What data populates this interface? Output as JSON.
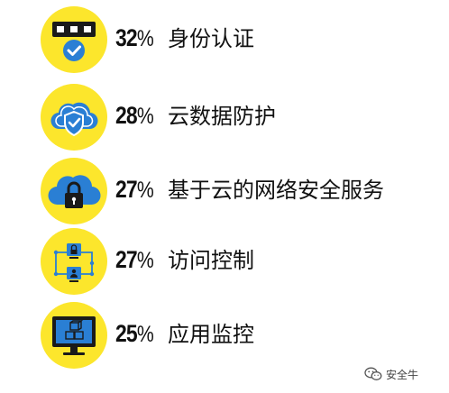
{
  "chart_data": {
    "type": "table",
    "title": "",
    "percent_symbol": "%",
    "items": [
      {
        "value": 32,
        "label": "身份认证",
        "icon": "id-card-check-icon"
      },
      {
        "value": 28,
        "label": "云数据防护",
        "icon": "cloud-shield-icon"
      },
      {
        "value": 27,
        "label": "基于云的网络安全服务",
        "icon": "cloud-lock-icon"
      },
      {
        "value": 27,
        "label": "访问控制",
        "icon": "network-access-icon"
      },
      {
        "value": 25,
        "label": "应用监控",
        "icon": "monitor-boxes-icon"
      }
    ]
  },
  "colors": {
    "icon_circle": "#fce62c",
    "icon_blue": "#2a7fd4",
    "icon_dark": "#1a1a1a",
    "icon_white": "#ffffff"
  },
  "watermark": {
    "text": "安全牛",
    "icon": "wechat-icon"
  }
}
